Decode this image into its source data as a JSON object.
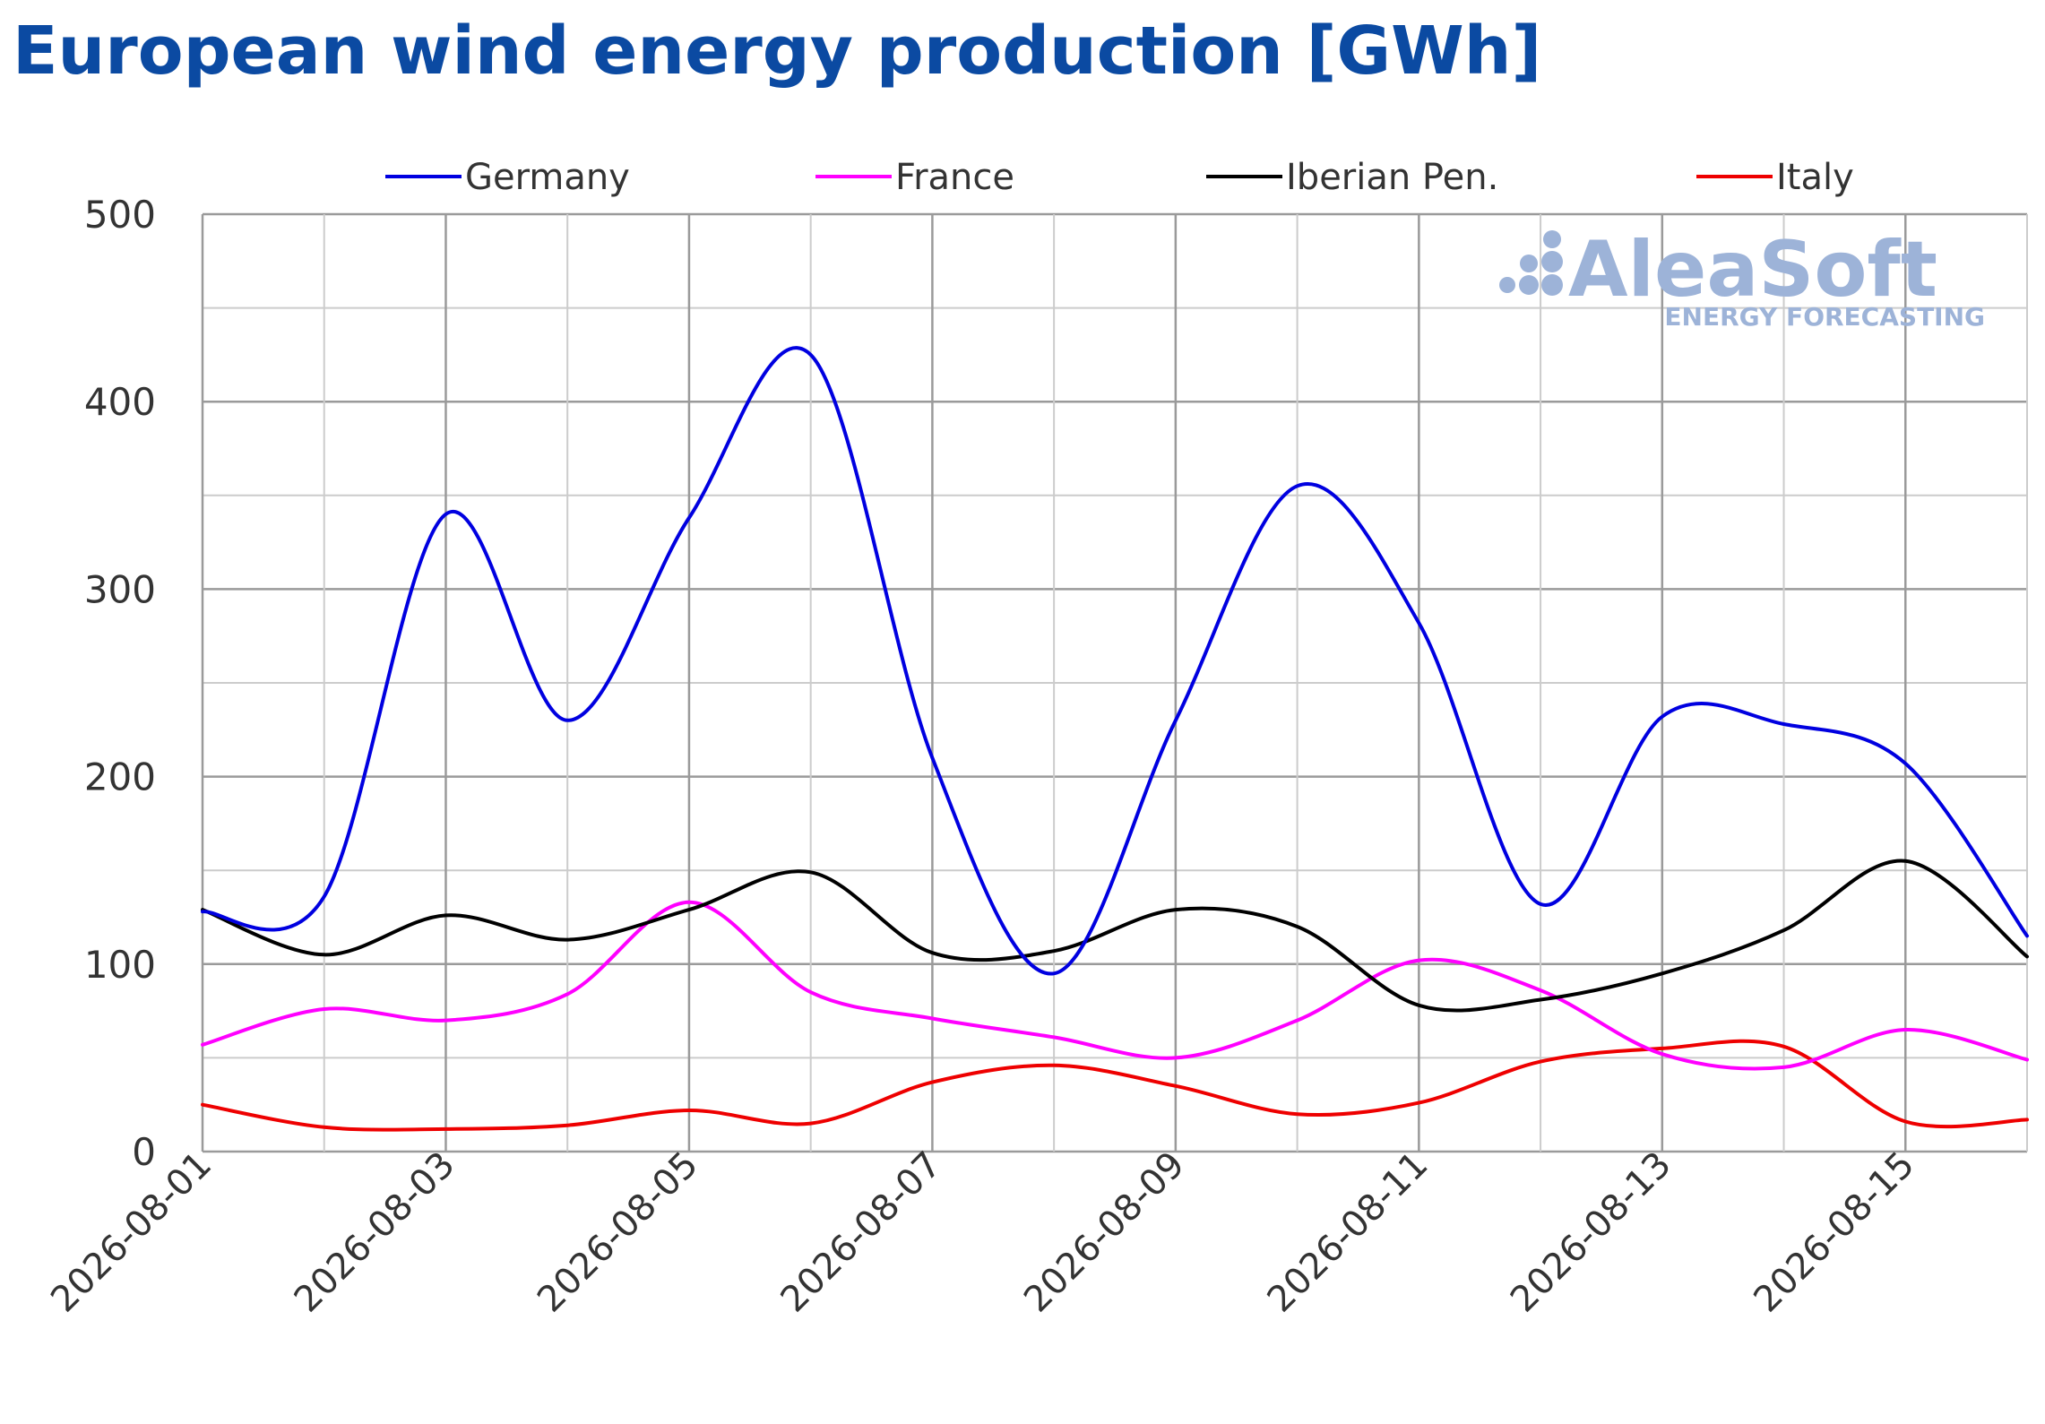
{
  "chart_data": {
    "type": "line",
    "title": "European wind energy production [GWh]",
    "xlabel": "",
    "ylabel": "",
    "x": [
      "2026-08-01",
      "2026-08-02",
      "2026-08-03",
      "2026-08-04",
      "2026-08-05",
      "2026-08-06",
      "2026-08-07",
      "2026-08-08",
      "2026-08-09",
      "2026-08-10",
      "2026-08-11",
      "2026-08-12",
      "2026-08-13",
      "2026-08-14",
      "2026-08-15",
      "2026-08-16"
    ],
    "x_tick_labels": [
      "2026-08-01",
      "2026-08-03",
      "2026-08-05",
      "2026-08-07",
      "2026-08-09",
      "2026-08-11",
      "2026-08-13",
      "2026-08-15"
    ],
    "ylim": [
      0,
      500
    ],
    "y_ticks": [
      0,
      100,
      200,
      300,
      400,
      500
    ],
    "grid": true,
    "legend_position": "top",
    "series": [
      {
        "name": "Germany",
        "color": "#0000e0",
        "values": [
          128,
          136,
          340,
          230,
          338,
          425,
          210,
          95,
          230,
          355,
          282,
          132,
          232,
          228,
          207,
          115
        ]
      },
      {
        "name": "France",
        "color": "#ff00ff",
        "values": [
          57,
          76,
          70,
          84,
          133,
          85,
          71,
          61,
          50,
          70,
          102,
          86,
          52,
          45,
          65,
          49
        ]
      },
      {
        "name": "Iberian Pen.",
        "color": "#000000",
        "values": [
          129,
          105,
          126,
          113,
          129,
          149,
          106,
          107,
          129,
          120,
          78,
          81,
          95,
          118,
          155,
          104
        ]
      },
      {
        "name": "Italy",
        "color": "#ee0000",
        "values": [
          25,
          13,
          12,
          14,
          22,
          15,
          37,
          46,
          35,
          20,
          26,
          48,
          55,
          56,
          16,
          17
        ]
      }
    ]
  },
  "watermark": {
    "brand": "AleaSoft",
    "tagline": "ENERGY FORECASTING"
  }
}
